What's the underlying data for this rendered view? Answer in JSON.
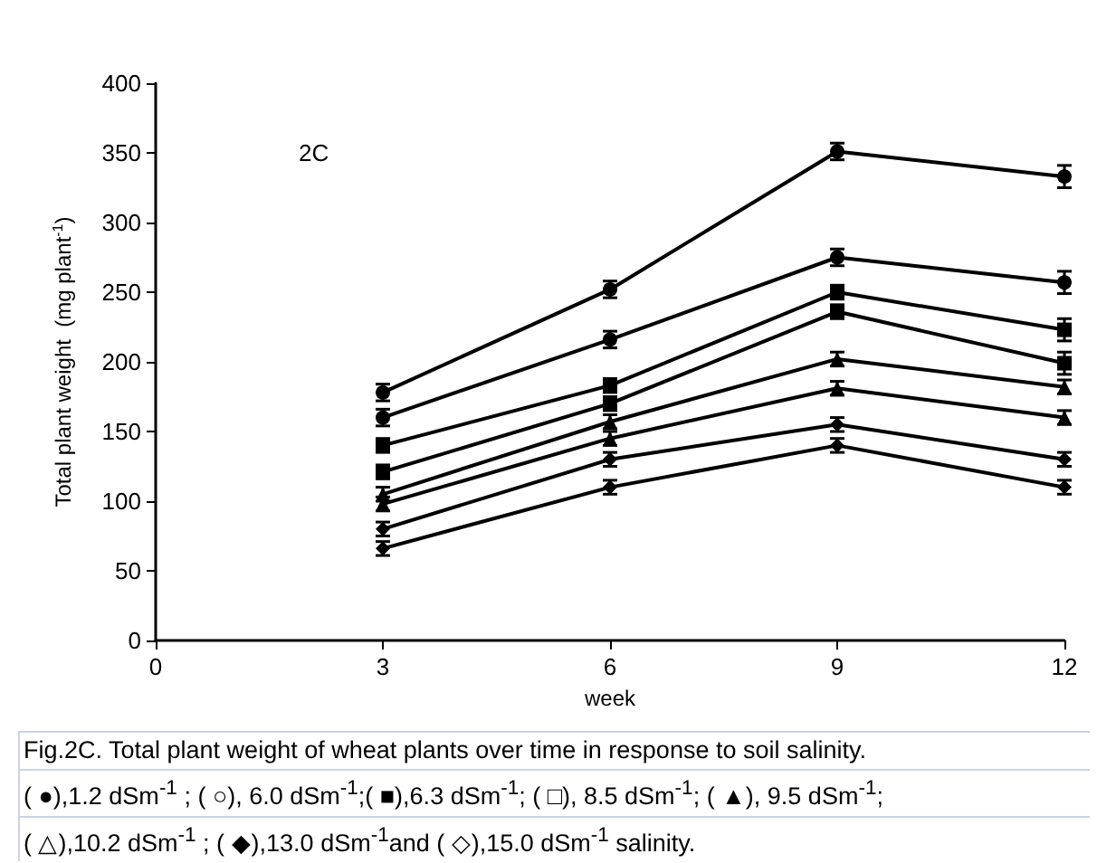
{
  "chart_data": {
    "type": "line",
    "xlabel": "week",
    "ylabel": "Total plant weight  (mg plant$^{-1}$)",
    "x": [
      3,
      6,
      9,
      12
    ],
    "xlim": [
      0,
      12
    ],
    "xticks": [
      0,
      3,
      6,
      9,
      12
    ],
    "ylim": [
      0,
      400
    ],
    "yticks": [
      0,
      50,
      100,
      150,
      200,
      250,
      300,
      350,
      400
    ],
    "grid": false,
    "series": [
      {
        "color": "#000000",
        "marker": "circle",
        "values": [
          178,
          252,
          351,
          333
        ],
        "errors": [
          6,
          6,
          6,
          8
        ]
      },
      {
        "color": "#000000",
        "marker": "circle",
        "values": [
          160,
          216,
          275,
          257
        ],
        "errors": [
          6,
          6,
          6,
          8
        ]
      },
      {
        "color": "#000000",
        "marker": "square",
        "values": [
          140,
          183,
          250,
          223
        ],
        "errors": [
          5,
          5,
          5,
          8
        ]
      },
      {
        "color": "#000000",
        "marker": "square",
        "values": [
          121,
          170,
          236,
          199
        ],
        "errors": [
          5,
          5,
          5,
          8
        ]
      },
      {
        "color": "#000000",
        "marker": "triangle",
        "values": [
          105,
          157,
          202,
          182
        ],
        "errors": [
          5,
          5,
          5,
          5
        ]
      },
      {
        "color": "#000000",
        "marker": "triangle",
        "values": [
          98,
          145,
          181,
          160
        ],
        "errors": [
          5,
          5,
          5,
          5
        ]
      },
      {
        "color": "#000000",
        "marker": "diamond",
        "values": [
          80,
          130,
          155,
          130
        ],
        "errors": [
          5,
          5,
          5,
          5
        ]
      },
      {
        "color": "#000000",
        "marker": "diamond",
        "values": [
          66,
          110,
          140,
          110
        ],
        "errors": [
          5,
          5,
          5,
          5
        ]
      }
    ],
    "annotations": [
      {
        "text": "2C"
      },
      "Fig.2C. Total plant weight of wheat plants over time in response to soil salinity.",
      "( ●),1.2 dSm$^{-1}$ ; ( ○), 6.0 dSm$^{-1}$;( ■),6.3 dSm$^{-1}$; ( □), 8.5 dSm$^{-1}$; ( ▲), 9.5 dSm$^{-1}$;",
      "( △),10.2 dSm$^{-1}$ ; ( ◆),13.0 dSm$^{-1}$and  ( ◇),15.0 dSm$^{-1}$ salinity."
    ]
  }
}
